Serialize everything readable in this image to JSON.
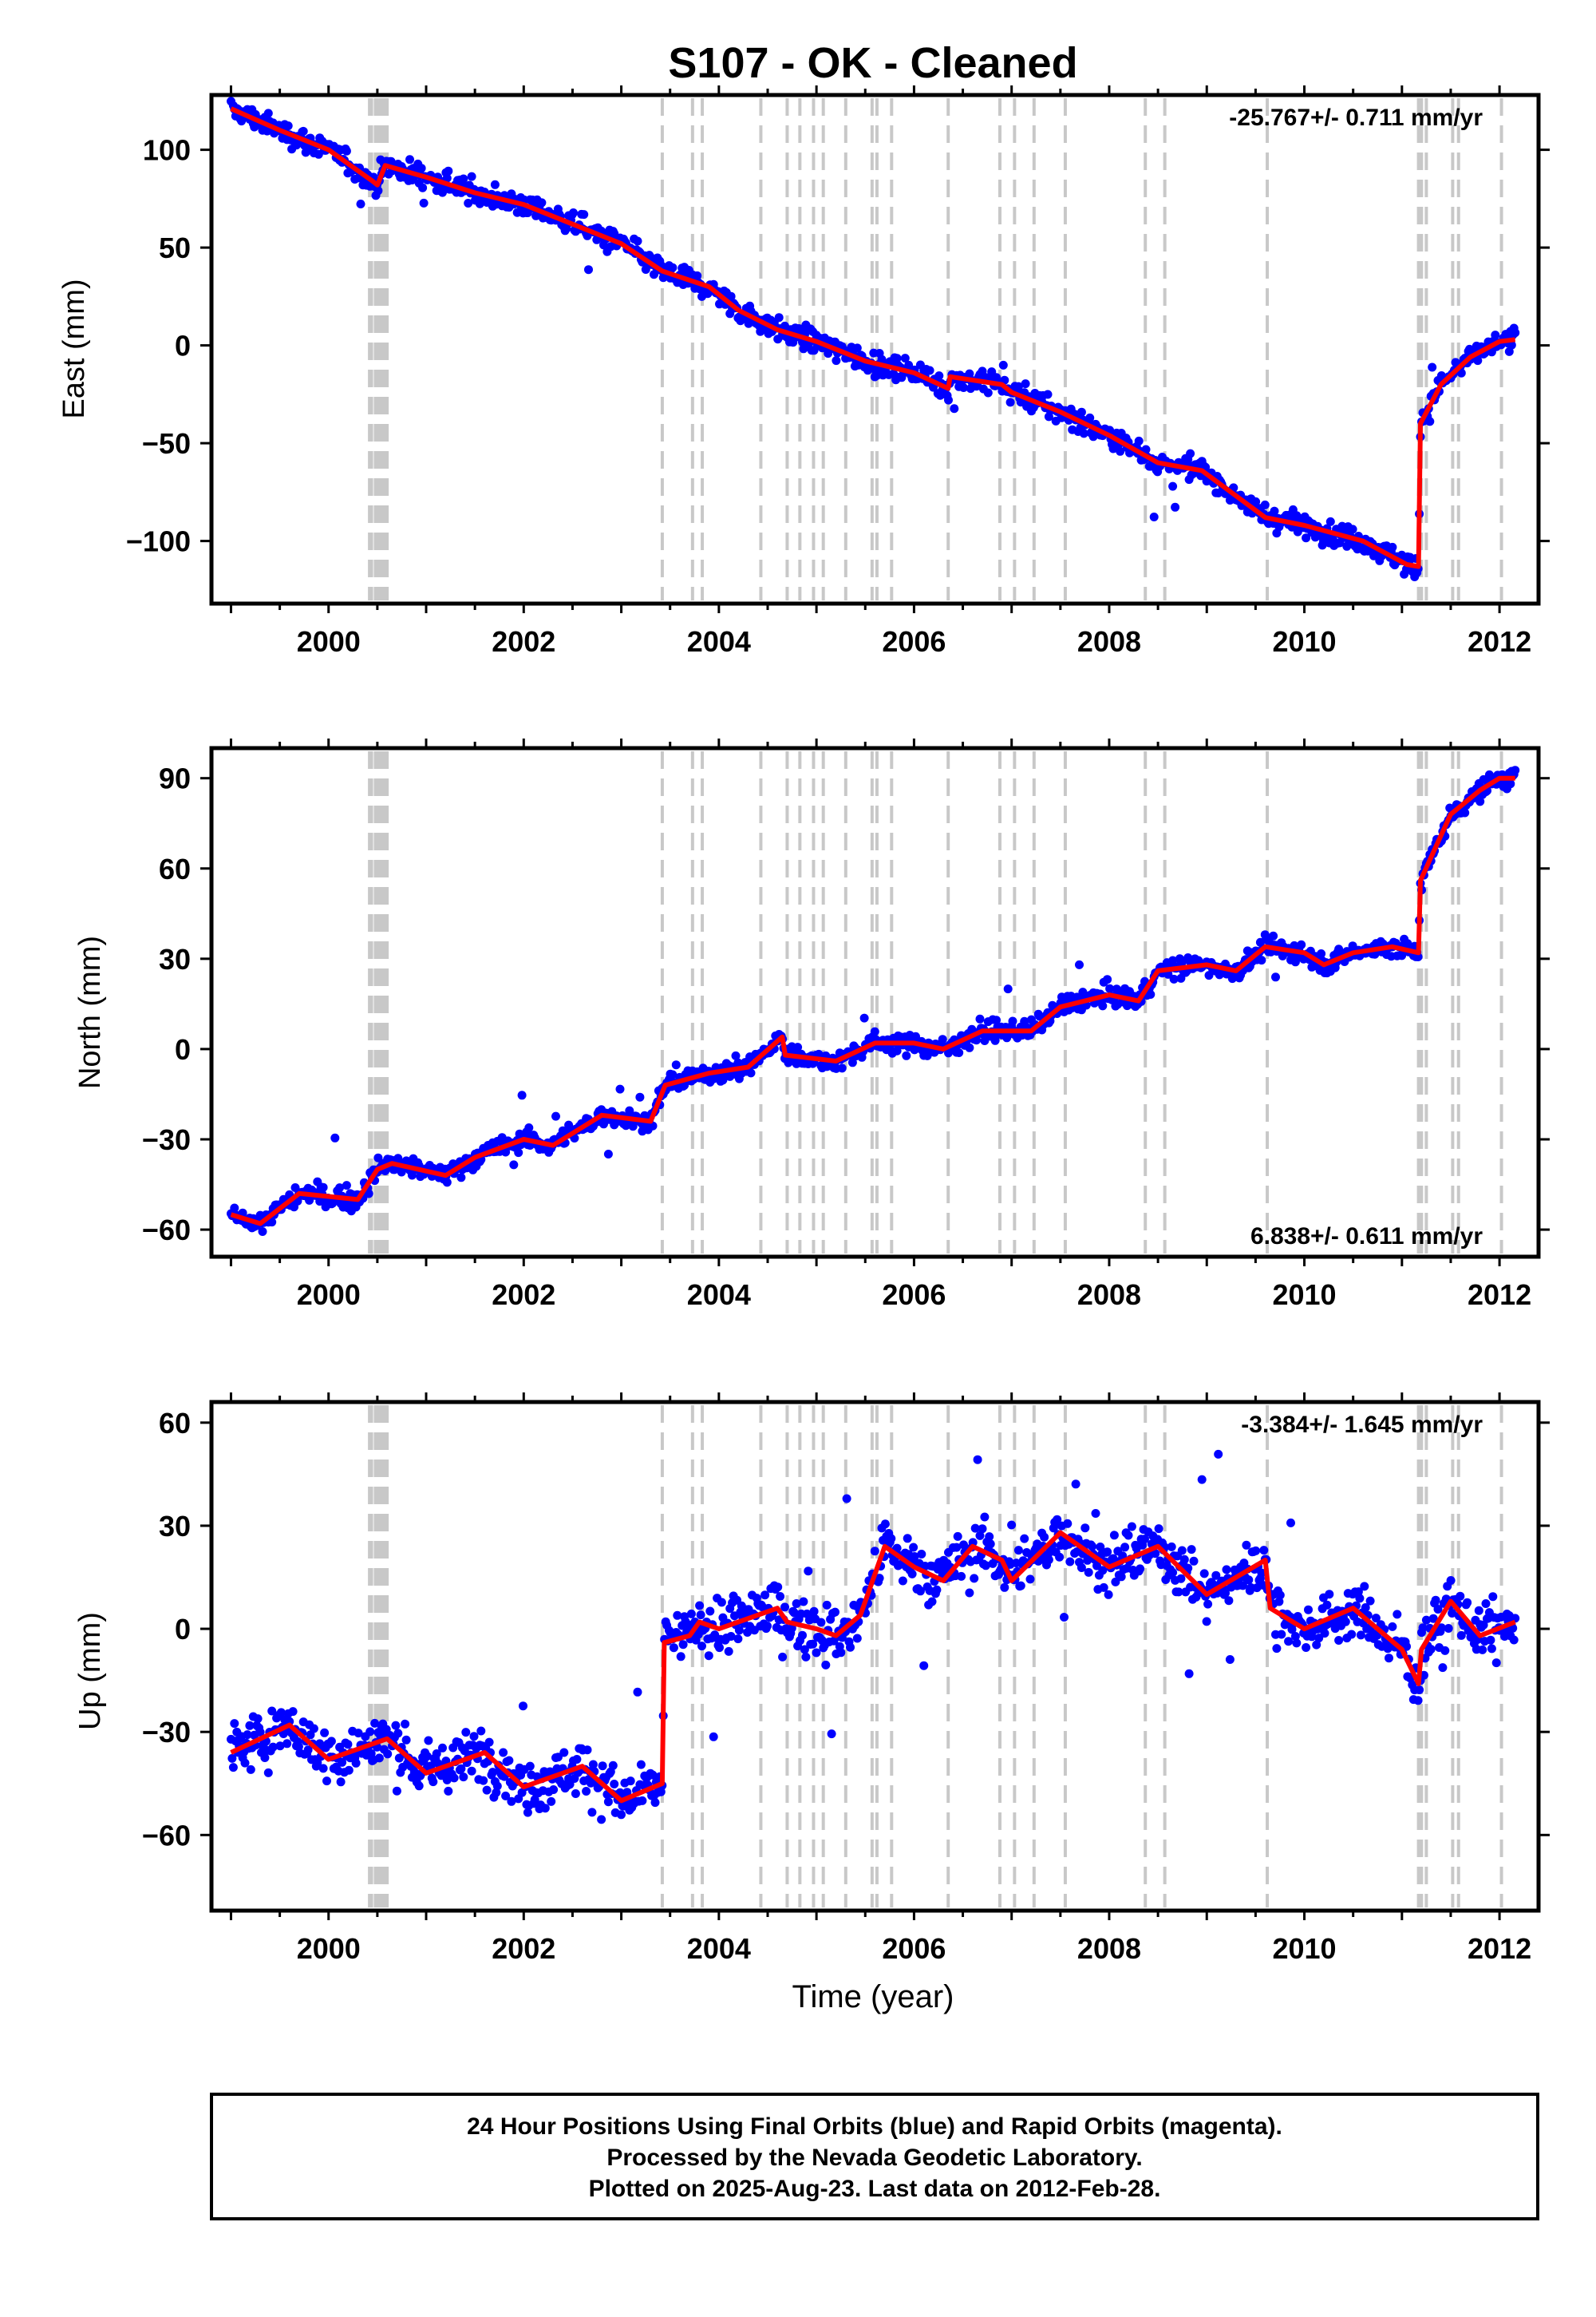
{
  "title": "S107  - OK - Cleaned",
  "footer": {
    "line1": "24 Hour Positions Using Final Orbits (blue) and Rapid Orbits (magenta).",
    "line2": "Processed by the Nevada Geodetic Laboratory.",
    "line3": "Plotted on 2025-Aug-23. Last data on 2012-Feb-28."
  },
  "xlabel": "Time (year)",
  "colors": {
    "points": "#0000ff",
    "model": "#ff0000",
    "steps": "#c8c8c8",
    "frame": "#000000"
  },
  "chart_data": [
    {
      "type": "scatter",
      "panel": "east",
      "ylabel": "East (mm)",
      "rate_label": "-25.767+/- 0.711 mm/yr",
      "rate_position": "top-right",
      "xlim": [
        1998.8,
        2012.4
      ],
      "ylim": [
        -132,
        128
      ],
      "xticks": [
        2000,
        2002,
        2004,
        2006,
        2008,
        2010,
        2012
      ],
      "yticks": [
        -100,
        -50,
        0,
        50,
        100
      ],
      "model": [
        [
          1999.0,
          121
        ],
        [
          1999.5,
          110
        ],
        [
          2000.0,
          100
        ],
        [
          2000.45,
          84
        ],
        [
          2000.5,
          82
        ],
        [
          2000.58,
          92
        ],
        [
          2001.0,
          86
        ],
        [
          2001.5,
          78
        ],
        [
          2002.0,
          72
        ],
        [
          2002.5,
          62
        ],
        [
          2003.0,
          52
        ],
        [
          2003.42,
          38
        ],
        [
          2003.9,
          30
        ],
        [
          2004.2,
          18
        ],
        [
          2004.6,
          8
        ],
        [
          2005.0,
          2
        ],
        [
          2005.5,
          -8
        ],
        [
          2006.0,
          -14
        ],
        [
          2006.35,
          -22
        ],
        [
          2006.37,
          -16
        ],
        [
          2006.9,
          -20
        ],
        [
          2007.0,
          -24
        ],
        [
          2007.5,
          -34
        ],
        [
          2008.0,
          -46
        ],
        [
          2008.5,
          -60
        ],
        [
          2008.95,
          -64
        ],
        [
          2009.6,
          -88
        ],
        [
          2010.0,
          -92
        ],
        [
          2010.6,
          -100
        ],
        [
          2011.05,
          -112
        ],
        [
          2011.17,
          -113
        ],
        [
          2011.19,
          -40
        ],
        [
          2011.4,
          -20
        ],
        [
          2011.7,
          -6
        ],
        [
          2012.0,
          2
        ],
        [
          2012.16,
          3
        ]
      ],
      "scatter": {
        "noise": 6,
        "outlier_rate": 0.01,
        "outlier_span": 16,
        "count": 1100
      }
    },
    {
      "type": "scatter",
      "panel": "north",
      "ylabel": "North (mm)",
      "rate_label": "6.838+/- 0.611 mm/yr",
      "rate_position": "bottom-right",
      "xlim": [
        1998.8,
        2012.4
      ],
      "ylim": [
        -69,
        100
      ],
      "xticks": [
        2000,
        2002,
        2004,
        2006,
        2008,
        2010,
        2012
      ],
      "yticks": [
        -60,
        -30,
        0,
        30,
        60,
        90
      ],
      "model": [
        [
          1999.0,
          -55
        ],
        [
          1999.3,
          -58
        ],
        [
          1999.7,
          -48
        ],
        [
          2000.3,
          -50
        ],
        [
          2000.5,
          -40
        ],
        [
          2000.65,
          -38
        ],
        [
          2001.2,
          -42
        ],
        [
          2001.5,
          -36
        ],
        [
          2002.0,
          -30
        ],
        [
          2002.3,
          -32
        ],
        [
          2002.8,
          -22
        ],
        [
          2003.3,
          -24
        ],
        [
          2003.45,
          -12
        ],
        [
          2003.9,
          -8
        ],
        [
          2004.3,
          -6
        ],
        [
          2004.65,
          4
        ],
        [
          2004.68,
          -2
        ],
        [
          2005.2,
          -4
        ],
        [
          2005.6,
          2
        ],
        [
          2006.0,
          2
        ],
        [
          2006.3,
          0
        ],
        [
          2006.7,
          6
        ],
        [
          2007.2,
          6
        ],
        [
          2007.5,
          14
        ],
        [
          2008.0,
          18
        ],
        [
          2008.3,
          16
        ],
        [
          2008.5,
          26
        ],
        [
          2009.0,
          28
        ],
        [
          2009.3,
          26
        ],
        [
          2009.6,
          34
        ],
        [
          2010.0,
          32
        ],
        [
          2010.2,
          28
        ],
        [
          2010.5,
          32
        ],
        [
          2010.9,
          34
        ],
        [
          2011.17,
          32
        ],
        [
          2011.19,
          56
        ],
        [
          2011.5,
          78
        ],
        [
          2011.8,
          86
        ],
        [
          2012.0,
          90
        ],
        [
          2012.16,
          90
        ]
      ],
      "scatter": {
        "noise": 3.5,
        "outlier_rate": 0.008,
        "outlier_span": 12,
        "count": 1100
      }
    },
    {
      "type": "scatter",
      "panel": "up",
      "ylabel": "Up (mm)",
      "rate_label": "-3.384+/- 1.645 mm/yr",
      "rate_position": "top-right",
      "xlim": [
        1998.8,
        2012.4
      ],
      "ylim": [
        -82,
        66
      ],
      "xticks": [
        2000,
        2002,
        2004,
        2006,
        2008,
        2010,
        2012
      ],
      "yticks": [
        -60,
        -30,
        0,
        30,
        60
      ],
      "model": [
        [
          1999.0,
          -36
        ],
        [
          1999.6,
          -28
        ],
        [
          2000.0,
          -38
        ],
        [
          2000.6,
          -32
        ],
        [
          2001.0,
          -42
        ],
        [
          2001.6,
          -36
        ],
        [
          2002.0,
          -46
        ],
        [
          2002.6,
          -40
        ],
        [
          2003.0,
          -50
        ],
        [
          2003.42,
          -45
        ],
        [
          2003.44,
          -4
        ],
        [
          2003.7,
          -2
        ],
        [
          2003.8,
          2
        ],
        [
          2004.0,
          0
        ],
        [
          2004.6,
          6
        ],
        [
          2004.7,
          2
        ],
        [
          2005.0,
          0
        ],
        [
          2005.2,
          -2
        ],
        [
          2005.45,
          4
        ],
        [
          2005.5,
          8
        ],
        [
          2005.7,
          24
        ],
        [
          2006.0,
          18
        ],
        [
          2006.3,
          14
        ],
        [
          2006.6,
          24
        ],
        [
          2006.9,
          20
        ],
        [
          2007.0,
          14
        ],
        [
          2007.5,
          28
        ],
        [
          2008.0,
          18
        ],
        [
          2008.5,
          24
        ],
        [
          2009.0,
          10
        ],
        [
          2009.6,
          20
        ],
        [
          2009.65,
          6
        ],
        [
          2010.0,
          0
        ],
        [
          2010.5,
          6
        ],
        [
          2011.0,
          -6
        ],
        [
          2011.17,
          -16
        ],
        [
          2011.2,
          -6
        ],
        [
          2011.5,
          8
        ],
        [
          2011.8,
          -2
        ],
        [
          2012.16,
          2
        ]
      ],
      "scatter": {
        "noise": 8.5,
        "outlier_rate": 0.012,
        "outlier_span": 22,
        "count": 1100
      }
    }
  ],
  "step_epochs": [
    2000.42,
    2000.44,
    2000.48,
    2000.5,
    2000.53,
    2000.55,
    2000.58,
    2000.6,
    2003.42,
    2003.73,
    2003.83,
    2004.43,
    2004.7,
    2004.83,
    2004.97,
    2005.07,
    2005.3,
    2005.57,
    2005.62,
    2005.77,
    2006.35,
    2006.88,
    2007.03,
    2007.23,
    2007.55,
    2008.37,
    2008.57,
    2009.62,
    2011.17,
    2011.2,
    2011.25,
    2011.52,
    2011.58,
    2012.02
  ]
}
